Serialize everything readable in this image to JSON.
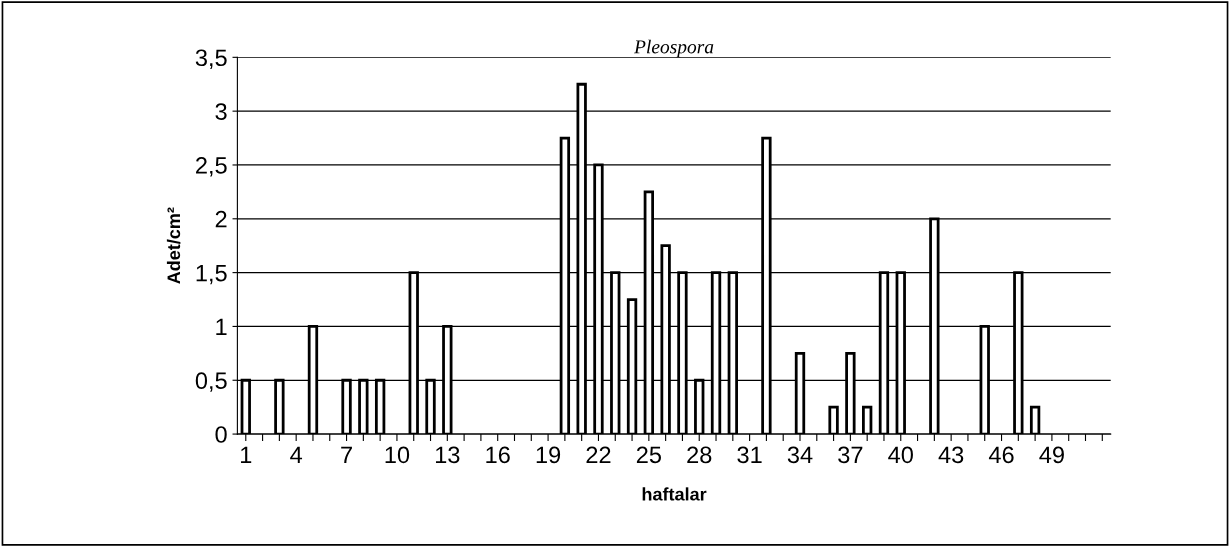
{
  "chart_data": {
    "type": "bar",
    "title": "Pleospora",
    "xlabel": "haftalar",
    "ylabel": "Adet/cm²",
    "categories": [
      "1",
      null,
      null,
      "4",
      null,
      null,
      "7",
      null,
      null,
      "10",
      null,
      null,
      "13",
      null,
      null,
      "16",
      null,
      null,
      "19",
      null,
      null,
      "22",
      null,
      null,
      "25",
      null,
      null,
      "28",
      null,
      null,
      "31",
      null,
      null,
      "34",
      null,
      null,
      "37",
      null,
      null,
      "40",
      null,
      null,
      "43",
      null,
      null,
      "46",
      null,
      null,
      "49",
      null,
      null,
      null
    ],
    "values": [
      0.5,
      null,
      0.5,
      null,
      1,
      null,
      0.5,
      0.5,
      0.5,
      null,
      1.5,
      0.5,
      1,
      null,
      null,
      null,
      null,
      null,
      null,
      2.75,
      3.25,
      2.5,
      1.5,
      1.25,
      2.25,
      1.75,
      1.5,
      0.5,
      1.5,
      1.5,
      null,
      2.75,
      null,
      0.75,
      null,
      0.25,
      0.75,
      0.25,
      1.5,
      1.5,
      null,
      2,
      null,
      null,
      1,
      null,
      1.5,
      0.25,
      null,
      null,
      null,
      null
    ],
    "color": "#ffffff",
    "ylim": [
      0,
      3.5
    ],
    "yticks": [
      {
        "value": 0,
        "label": "0"
      },
      {
        "value": 0.5,
        "label": "0,5"
      },
      {
        "value": 1,
        "label": "1"
      },
      {
        "value": 1.5,
        "label": "1,5"
      },
      {
        "value": 2,
        "label": "2"
      },
      {
        "value": 2.5,
        "label": "2,5"
      },
      {
        "value": 3,
        "label": "3"
      },
      {
        "value": 3.5,
        "label": "3,5"
      }
    ],
    "grid": "y",
    "legend": false
  }
}
